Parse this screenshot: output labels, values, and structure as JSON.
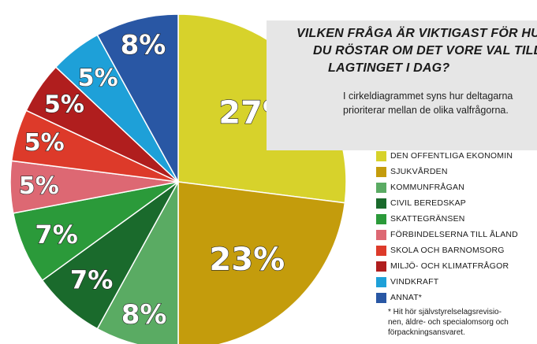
{
  "title": [
    "VILKEN FRÅGA ÄR VIKTIGAST FÖR HUR",
    "DU RÖSTAR OM DET VORE VAL TILL",
    "LAGTINGET I DAG?"
  ],
  "subtitle": [
    "I cirkeldiagrammet syns hur deltagarna",
    "prioriterar mellan de olika valfrågorna."
  ],
  "footnote": [
    "* Hit hör självstyrelselagsrevisio-",
    "nen, äldre- och specialomsorg och",
    "förpackningsansvaret."
  ],
  "chart_data": {
    "type": "pie",
    "title": "VILKEN FRÅGA ÄR VIKTIGAST FÖR HUR DU RÖSTAR OM DET VORE VAL TILL LAGTINGET I DAG?",
    "start": "12 o'clock",
    "direction": "clockwise",
    "unit": "%",
    "legend_position": "right",
    "slices": [
      {
        "label": "DEN OFFENTLIGA EKONOMIN",
        "value": 27,
        "display": "27%",
        "color": "#d7d22b"
      },
      {
        "label": "SJUKVÅRDEN",
        "value": 23,
        "display": "23%",
        "color": "#c49c0c"
      },
      {
        "label": "KOMMUNFRÅGAN",
        "value": 8,
        "display": "8%",
        "color": "#5aab63"
      },
      {
        "label": "CIVIL BEREDSKAP",
        "value": 7,
        "display": "7%",
        "color": "#1a6a2c"
      },
      {
        "label": "SKATTEGRÄNSEN",
        "value": 7,
        "display": "7%",
        "color": "#2b9a3a"
      },
      {
        "label": "FÖRBINDELSERNA TILL ÅLAND",
        "value": 5,
        "display": "5%",
        "color": "#dd6873"
      },
      {
        "label": "SKOLA OCH BARNOMSORG",
        "value": 5,
        "display": "5%",
        "color": "#dd3a2a"
      },
      {
        "label": "MILJÖ- OCH KLIMATFRÅGOR",
        "value": 5,
        "display": "5%",
        "color": "#b01e1e"
      },
      {
        "label": "VINDKRAFT",
        "value": 5,
        "display": "5%",
        "color": "#1ea0d8"
      },
      {
        "label": "ANNAT*",
        "value": 8,
        "display": "8%",
        "color": "#2957a4"
      }
    ]
  }
}
